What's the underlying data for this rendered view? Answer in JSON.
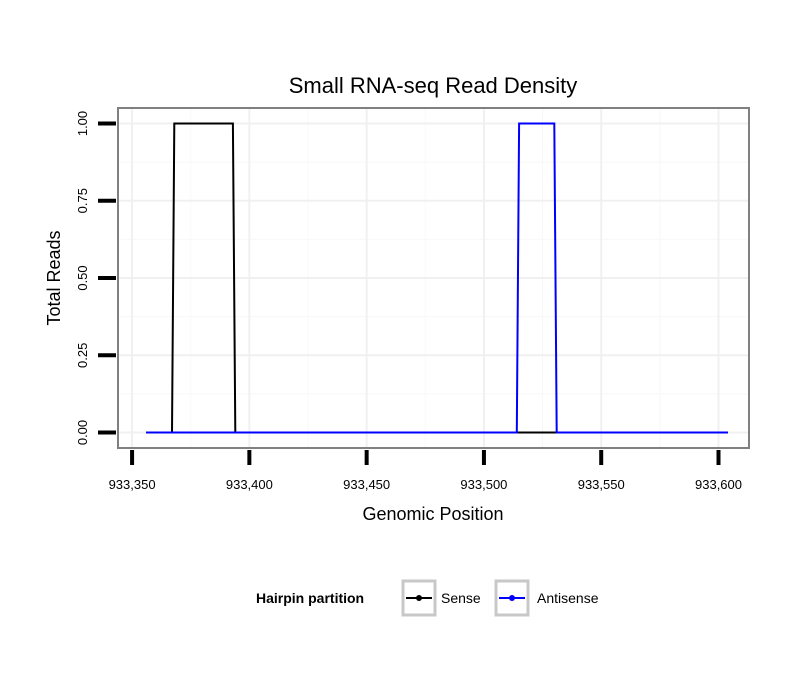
{
  "chart_data": {
    "type": "line",
    "title": "Small RNA-seq Read Density",
    "xlabel": "Genomic Position",
    "ylabel": "Total Reads",
    "xlim": [
      933344,
      933613
    ],
    "ylim": [
      -0.05,
      1.05
    ],
    "x_ticks": [
      933350,
      933400,
      933450,
      933500,
      933550,
      933600
    ],
    "x_tick_labels": [
      "933,350",
      "933,400",
      "933,450",
      "933,500",
      "933,550",
      "933,600"
    ],
    "y_ticks": [
      0,
      0.25,
      0.5,
      0.75,
      1.0
    ],
    "y_tick_labels": [
      "0.00",
      "0.25",
      "0.50",
      "0.75",
      "1.00"
    ],
    "grid": true,
    "legend": {
      "title": "Hairpin partition",
      "position": "bottom"
    },
    "series": [
      {
        "name": "Sense",
        "color": "#000000",
        "x": [
          933356,
          933367,
          933368,
          933393,
          933394,
          933604
        ],
        "y": [
          0,
          0,
          1,
          1,
          0,
          0
        ]
      },
      {
        "name": "Antisense",
        "color": "#0000ff",
        "x": [
          933356,
          933514,
          933515,
          933530,
          933531,
          933604
        ],
        "y": [
          0,
          0,
          1,
          1,
          0,
          0
        ]
      }
    ]
  }
}
